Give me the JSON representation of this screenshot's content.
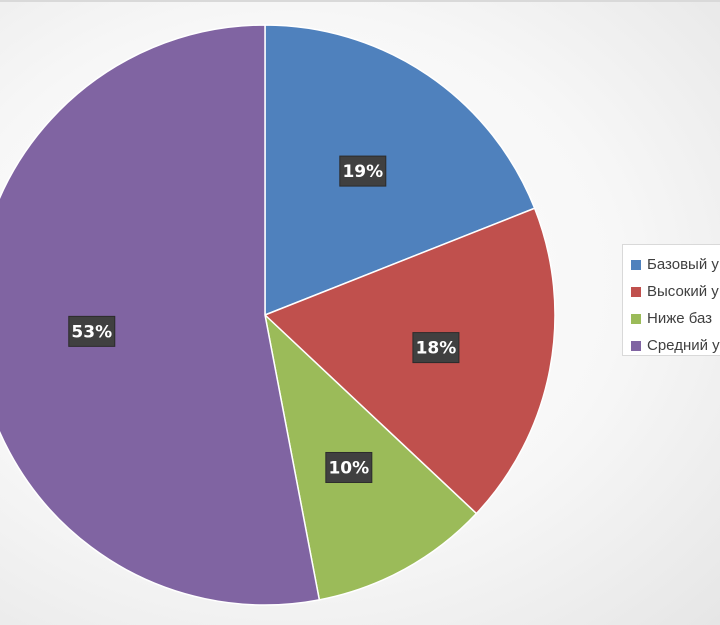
{
  "chart_data": {
    "type": "pie",
    "categories": [
      "Базовый у",
      "Высокий у",
      "Ниже баз",
      "Средний у"
    ],
    "values": [
      19,
      18,
      10,
      53
    ],
    "labels": [
      "19%",
      "18%",
      "10%",
      "53%"
    ],
    "colors": [
      "#4f81bd",
      "#c0504d",
      "#9bbb59",
      "#8064a2"
    ],
    "legend_position": "right"
  },
  "legend": {
    "items": [
      {
        "label": "Базовый у",
        "color": "#4f81bd"
      },
      {
        "label": "Высокий у",
        "color": "#c0504d"
      },
      {
        "label": "Ниже баз",
        "color": "#9bbb59"
      },
      {
        "label": "Средний у",
        "color": "#8064a2"
      }
    ]
  }
}
